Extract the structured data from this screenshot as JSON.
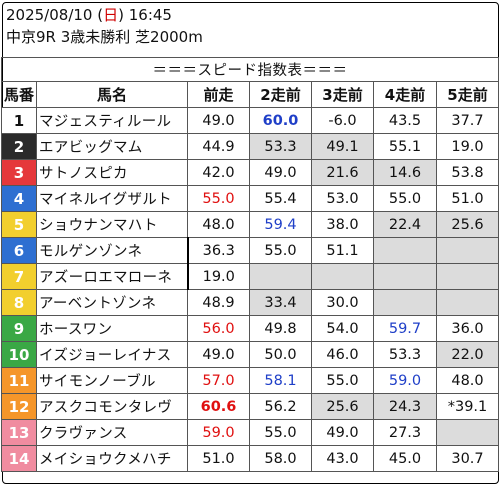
{
  "header": {
    "date": "2025/08/10",
    "weekday": "日",
    "time": "16:45",
    "race": "中京9R 3歳未勝利 芝2000m"
  },
  "table": {
    "title": "＝＝＝スピード指数表＝＝＝",
    "columns": [
      "馬番",
      "馬名",
      "前走",
      "2走前",
      "3走前",
      "4走前",
      "5走前"
    ],
    "waku_colors": {
      "1": {
        "bg": "#ffffff",
        "fg": "#111111"
      },
      "2": {
        "bg": "#2b2b2b",
        "fg": "#ffffff"
      },
      "3": {
        "bg": "#e5383b",
        "fg": "#ffffff"
      },
      "4": {
        "bg": "#2e6fd1",
        "fg": "#ffffff"
      },
      "5": {
        "bg": "#f2cf2e",
        "fg": "#ffffff"
      },
      "6": {
        "bg": "#3aa845",
        "fg": "#ffffff"
      },
      "7": {
        "bg": "#f5962a",
        "fg": "#ffffff"
      },
      "8": {
        "bg": "#f08ca0",
        "fg": "#ffffff"
      }
    },
    "rows": [
      {
        "no": "1",
        "waku": "1",
        "name": "マジェスティルール",
        "cells": [
          {
            "v": "49.0"
          },
          {
            "v": "60.0",
            "style": "blue bold"
          },
          {
            "v": "-6.0"
          },
          {
            "v": "43.5"
          },
          {
            "v": "37.7"
          }
        ]
      },
      {
        "no": "2",
        "waku": "2",
        "name": "エアビッグマム",
        "cells": [
          {
            "v": "44.9"
          },
          {
            "v": "53.3",
            "style": "shade"
          },
          {
            "v": "49.1",
            "style": "shade"
          },
          {
            "v": "55.1"
          },
          {
            "v": "19.0"
          }
        ]
      },
      {
        "no": "3",
        "waku": "3",
        "name": "サトノスピカ",
        "cells": [
          {
            "v": "42.0"
          },
          {
            "v": "49.0"
          },
          {
            "v": "21.6",
            "style": "shade"
          },
          {
            "v": "14.6",
            "style": "shade"
          },
          {
            "v": "53.8"
          }
        ]
      },
      {
        "no": "4",
        "waku": "4",
        "name": "マイネルイグザルト",
        "cells": [
          {
            "v": "55.0",
            "style": "red"
          },
          {
            "v": "55.4"
          },
          {
            "v": "53.0"
          },
          {
            "v": "55.0"
          },
          {
            "v": "51.0"
          }
        ]
      },
      {
        "no": "5",
        "waku": "5",
        "name": "ショウナンマハト",
        "cells": [
          {
            "v": "48.0"
          },
          {
            "v": "59.4",
            "style": "blue"
          },
          {
            "v": "38.0"
          },
          {
            "v": "22.4",
            "style": "shade"
          },
          {
            "v": "25.6",
            "style": "shade"
          }
        ]
      },
      {
        "no": "6",
        "waku": "4",
        "name": "モルゲンゾンネ",
        "cells": [
          {
            "v": "36.3"
          },
          {
            "v": "55.0"
          },
          {
            "v": "51.1"
          },
          {
            "v": "",
            "style": "shade"
          },
          {
            "v": "",
            "style": "shade"
          }
        ]
      },
      {
        "no": "7",
        "waku": "5",
        "name": "アズーロエマローネ",
        "cells": [
          {
            "v": "19.0"
          },
          {
            "v": "",
            "style": "shade"
          },
          {
            "v": "",
            "style": "shade"
          },
          {
            "v": "",
            "style": "shade"
          },
          {
            "v": "",
            "style": "shade"
          }
        ]
      },
      {
        "no": "8",
        "waku": "5",
        "name": "アーベントゾンネ",
        "cells": [
          {
            "v": "48.9"
          },
          {
            "v": "33.4",
            "style": "shade"
          },
          {
            "v": "30.0"
          },
          {
            "v": "",
            "style": "shade"
          },
          {
            "v": "",
            "style": "shade"
          }
        ]
      },
      {
        "no": "9",
        "waku": "6",
        "name": "ホースワン",
        "cells": [
          {
            "v": "56.0",
            "style": "red"
          },
          {
            "v": "49.8"
          },
          {
            "v": "54.0"
          },
          {
            "v": "59.7",
            "style": "blue"
          },
          {
            "v": "36.0"
          }
        ]
      },
      {
        "no": "10",
        "waku": "6",
        "name": "イズジョーレイナス",
        "cells": [
          {
            "v": "49.0"
          },
          {
            "v": "50.0"
          },
          {
            "v": "46.0"
          },
          {
            "v": "53.3"
          },
          {
            "v": "22.0",
            "style": "shade"
          }
        ]
      },
      {
        "no": "11",
        "waku": "7",
        "name": "サイモンノーブル",
        "cells": [
          {
            "v": "57.0",
            "style": "red"
          },
          {
            "v": "58.1",
            "style": "blue"
          },
          {
            "v": "55.0"
          },
          {
            "v": "59.0",
            "style": "blue"
          },
          {
            "v": "48.0"
          }
        ]
      },
      {
        "no": "12",
        "waku": "7",
        "name": "アスクコモンタレヴ",
        "cells": [
          {
            "v": "60.6",
            "style": "red bold"
          },
          {
            "v": "56.2"
          },
          {
            "v": "25.6",
            "style": "shade"
          },
          {
            "v": "24.3",
            "style": "shade"
          },
          {
            "v": "*39.1"
          }
        ]
      },
      {
        "no": "13",
        "waku": "8",
        "name": "クラヴァンス",
        "cells": [
          {
            "v": "59.0",
            "style": "red"
          },
          {
            "v": "55.0"
          },
          {
            "v": "49.0"
          },
          {
            "v": "27.3"
          },
          {
            "v": "",
            "style": "shade"
          }
        ]
      },
      {
        "no": "14",
        "waku": "8",
        "name": "メイショウクメハチ",
        "cells": [
          {
            "v": "51.0"
          },
          {
            "v": "58.0"
          },
          {
            "v": "43.0"
          },
          {
            "v": "45.0"
          },
          {
            "v": "30.7"
          }
        ]
      }
    ]
  }
}
